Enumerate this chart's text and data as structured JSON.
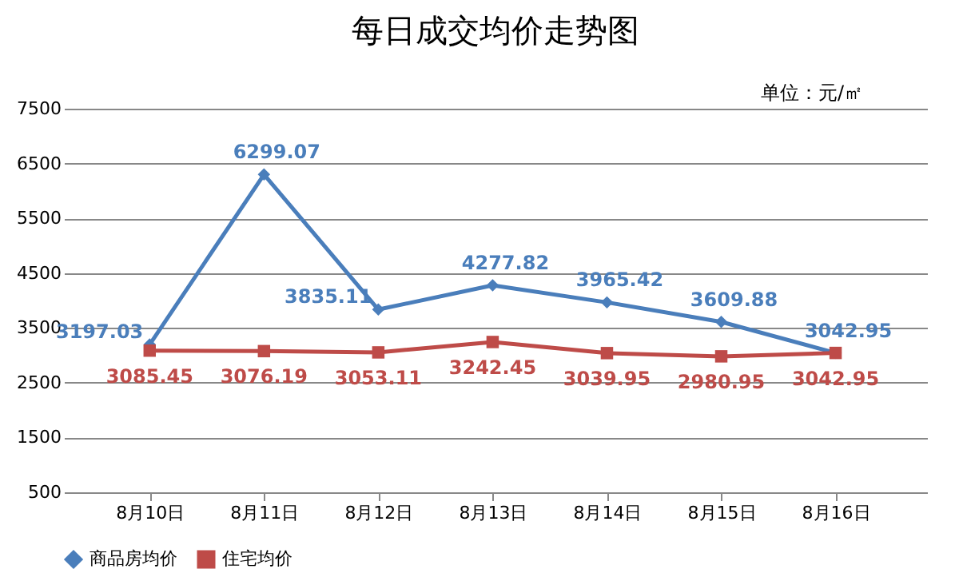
{
  "chart_data": {
    "type": "line",
    "title": "每日成交均价走势图",
    "annotations": [
      "单位：元/㎡"
    ],
    "categories": [
      "8月10日",
      "8月11日",
      "8月12日",
      "8月13日",
      "8月14日",
      "8月15日",
      "8月16日"
    ],
    "series": [
      {
        "name": "商品房均价",
        "color": "#4a7ebb",
        "marker": "diamond",
        "values": [
          3197.03,
          6299.07,
          3835.11,
          4277.82,
          3965.42,
          3609.88,
          3042.95
        ]
      },
      {
        "name": "住宅均价",
        "color": "#be4b48",
        "marker": "square",
        "values": [
          3085.45,
          3076.19,
          3053.11,
          3242.45,
          3039.95,
          2980.95,
          3042.95
        ]
      }
    ],
    "ylim": [
      500,
      7500
    ],
    "yticks": [
      500,
      1500,
      2500,
      3500,
      4500,
      5500,
      6500,
      7500
    ],
    "grid": "y",
    "legend": "bottom",
    "data_labels": true,
    "line_style": "solid"
  }
}
